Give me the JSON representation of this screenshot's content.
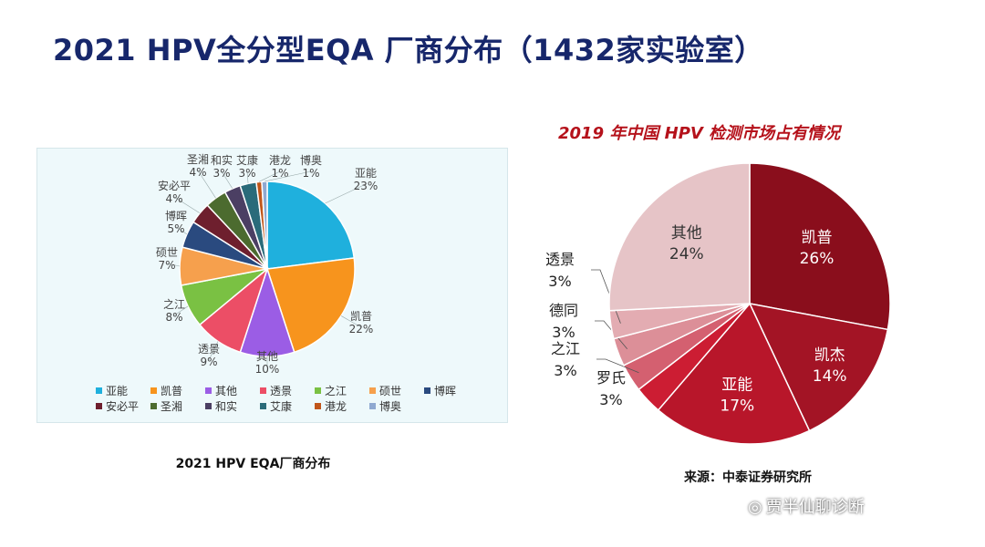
{
  "slide": {
    "title": "2021 HPV全分型EQA 厂商分布（1432家实验室）",
    "watermark_text": "贾半仙聊诊断",
    "watermark_icon": "wechat-icon"
  },
  "chart_data": [
    {
      "type": "pie",
      "title": "",
      "caption": "2021 HPV EQA厂商分布",
      "legend_position": "bottom",
      "slices": [
        {
          "label": "亚能",
          "value": 23,
          "text": "23%",
          "color": "#1fb0dd"
        },
        {
          "label": "凯普",
          "value": 22,
          "text": "22%",
          "color": "#f7941d"
        },
        {
          "label": "其他",
          "value": 10,
          "text": "10%",
          "color": "#9b5de5"
        },
        {
          "label": "透景",
          "value": 9,
          "text": "9%",
          "color": "#ec4e66"
        },
        {
          "label": "之江",
          "value": 8,
          "text": "8%",
          "color": "#7ac143"
        },
        {
          "label": "硕世",
          "value": 7,
          "text": "7%",
          "color": "#f6a04d"
        },
        {
          "label": "博晖",
          "value": 5,
          "text": "5%",
          "color": "#2a4a7f"
        },
        {
          "label": "安必平",
          "value": 4,
          "text": "4%",
          "color": "#6e1f2e"
        },
        {
          "label": "圣湘",
          "value": 4,
          "text": "4%",
          "color": "#4c6b2f"
        },
        {
          "label": "和实",
          "value": 3,
          "text": "3%",
          "color": "#4b3f63"
        },
        {
          "label": "艾康",
          "value": 3,
          "text": "3%",
          "color": "#2a6b7a"
        },
        {
          "label": "港龙",
          "value": 1,
          "text": "1%",
          "color": "#c0561a"
        },
        {
          "label": "博奥",
          "value": 1,
          "text": "1%",
          "color": "#8fa9d1"
        }
      ]
    },
    {
      "type": "pie",
      "title": "2019 年中国 HPV 检测市场占有情况",
      "caption": "来源：中泰证券研究所",
      "slices": [
        {
          "label": "凯普",
          "value": 26,
          "text": "26%",
          "color": "#8a0e1c"
        },
        {
          "label": "凯杰",
          "value": 14,
          "text": "14%",
          "color": "#a31425"
        },
        {
          "label": "亚能",
          "value": 17,
          "text": "17%",
          "color": "#b8162a"
        },
        {
          "label": "罗氏",
          "value": 3,
          "text": "3%",
          "color": "#cc1d33"
        },
        {
          "label": "之江",
          "value": 3,
          "text": "3%",
          "color": "#d46070"
        },
        {
          "label": "德同",
          "value": 3,
          "text": "3%",
          "color": "#dc8f98"
        },
        {
          "label": "透景",
          "value": 3,
          "text": "3%",
          "color": "#e3acb2"
        },
        {
          "label": "其他",
          "value": 24,
          "text": "24%",
          "color": "#e6c4c7"
        }
      ]
    }
  ]
}
